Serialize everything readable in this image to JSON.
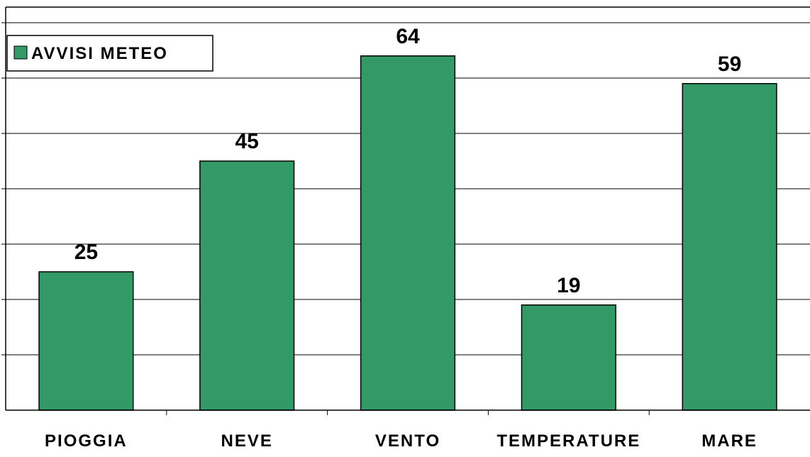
{
  "chart_data": {
    "type": "bar",
    "categories": [
      "PIOGGIA",
      "NEVE",
      "VENTO",
      "TEMPERATURE",
      "MARE"
    ],
    "series": [
      {
        "name": "AVVISI METEO",
        "values": [
          25,
          45,
          64,
          19,
          59
        ],
        "color": "#339966"
      }
    ],
    "data_labels": [
      "25",
      "45",
      "64",
      "19",
      "59"
    ],
    "ylim": [
      0,
      70
    ],
    "y_gridline_step": 10,
    "grid": true,
    "legend_position": "top-left",
    "colors": {
      "bar": "#339966",
      "gridline": "#000000",
      "background": "#ffffff"
    }
  }
}
